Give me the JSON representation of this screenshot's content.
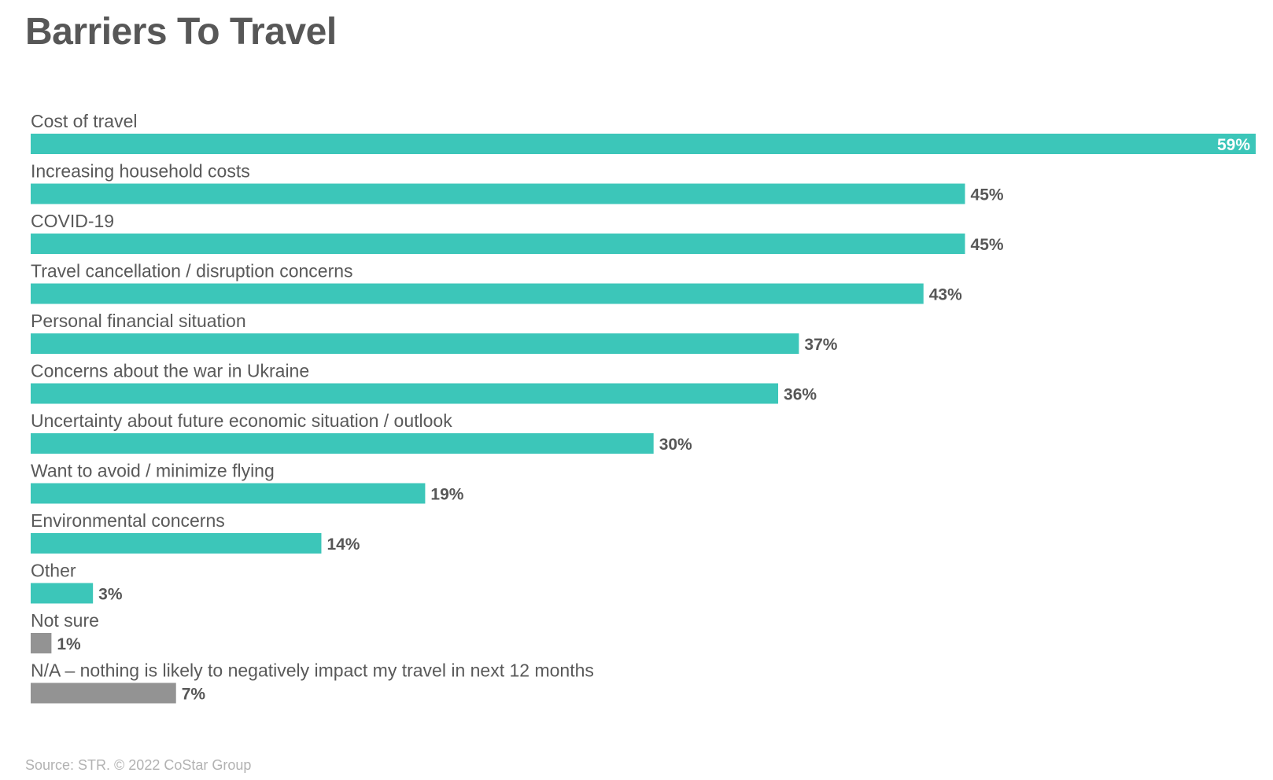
{
  "page": {
    "title": "Barriers To Travel",
    "source": "Source: STR. © 2022 CoStar Group"
  },
  "colors": {
    "primary_bar": "#3cc6b9",
    "secondary_bar": "#939393",
    "title_text": "#575757",
    "label_text": "#595959",
    "source_text": "#b2b2b2"
  },
  "chart_data": {
    "type": "bar",
    "orientation": "horizontal",
    "title": "Barriers To Travel",
    "xlabel": "",
    "ylabel": "",
    "xlim": [
      0,
      59
    ],
    "grid": false,
    "legend": "none",
    "value_format": "percent",
    "categories": [
      "Cost of travel",
      "Increasing household costs",
      "COVID-19",
      "Travel cancellation / disruption concerns",
      "Personal financial situation",
      "Concerns about the war in Ukraine",
      "Uncertainty about future economic situation / outlook",
      "Want to avoid / minimize flying",
      "Environmental concerns",
      "Other",
      "Not sure",
      "N/A – nothing is likely to negatively impact my travel in next 12 months"
    ],
    "values": [
      59,
      45,
      45,
      43,
      37,
      36,
      30,
      19,
      14,
      3,
      1,
      7
    ],
    "value_labels": [
      "59%",
      "45%",
      "45%",
      "43%",
      "37%",
      "36%",
      "30%",
      "19%",
      "14%",
      "3%",
      "1%",
      "7%"
    ],
    "bar_color_keys": [
      "primary_bar",
      "primary_bar",
      "primary_bar",
      "primary_bar",
      "primary_bar",
      "primary_bar",
      "primary_bar",
      "primary_bar",
      "primary_bar",
      "primary_bar",
      "secondary_bar",
      "secondary_bar"
    ]
  }
}
